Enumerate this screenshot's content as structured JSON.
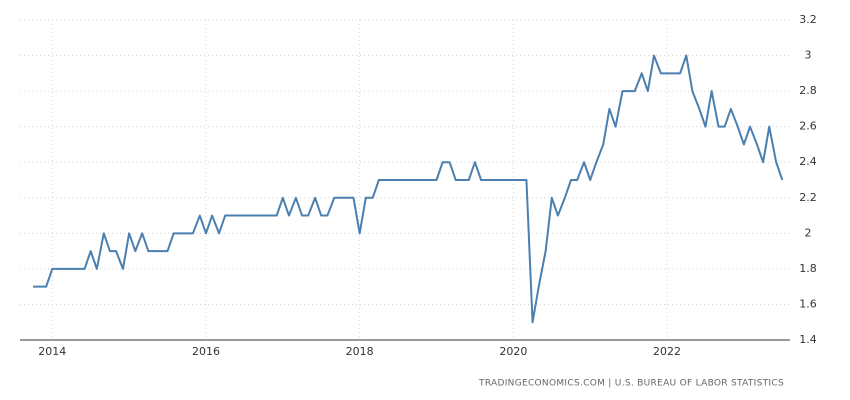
{
  "chart_data": {
    "type": "line",
    "source": "TRADINGECONOMICS.COM | U.S. BUREAU OF LABOR STATISTICS",
    "color": "#4a7fb0",
    "grid": true,
    "xlim": [
      2013.58,
      2023.6
    ],
    "xticks": [
      2014,
      2016,
      2018,
      2020,
      2022
    ],
    "ylim": [
      1.4,
      3.2
    ],
    "yticks": [
      1.4,
      1.6,
      1.8,
      2,
      2.2,
      2.4,
      2.6,
      2.8,
      3,
      3.2
    ],
    "x": [
      2013.75,
      2013.83,
      2013.92,
      2014.0,
      2014.08,
      2014.17,
      2014.25,
      2014.33,
      2014.42,
      2014.5,
      2014.58,
      2014.67,
      2014.75,
      2014.83,
      2014.92,
      2015.0,
      2015.08,
      2015.17,
      2015.25,
      2015.33,
      2015.42,
      2015.5,
      2015.58,
      2015.67,
      2015.75,
      2015.83,
      2015.92,
      2016.0,
      2016.08,
      2016.17,
      2016.25,
      2016.33,
      2016.42,
      2016.5,
      2016.58,
      2016.67,
      2016.75,
      2016.83,
      2016.92,
      2017.0,
      2017.08,
      2017.17,
      2017.25,
      2017.33,
      2017.42,
      2017.5,
      2017.58,
      2017.67,
      2017.75,
      2017.83,
      2017.92,
      2018.0,
      2018.08,
      2018.17,
      2018.25,
      2018.33,
      2018.42,
      2018.5,
      2018.58,
      2018.67,
      2018.75,
      2018.83,
      2018.92,
      2019.0,
      2019.08,
      2019.17,
      2019.25,
      2019.33,
      2019.42,
      2019.5,
      2019.58,
      2019.67,
      2019.75,
      2019.83,
      2019.92,
      2020.0,
      2020.08,
      2020.17,
      2020.25,
      2020.33,
      2020.42,
      2020.5,
      2020.58,
      2020.67,
      2020.75,
      2020.83,
      2020.92,
      2021.0,
      2021.08,
      2021.17,
      2021.25,
      2021.33,
      2021.42,
      2021.5,
      2021.58,
      2021.67,
      2021.75,
      2021.83,
      2021.92,
      2022.0,
      2022.08,
      2022.17,
      2022.25,
      2022.33,
      2022.42,
      2022.5,
      2022.58,
      2022.67,
      2022.75,
      2022.83,
      2022.92,
      2023.0,
      2023.08,
      2023.17,
      2023.25,
      2023.33,
      2023.42,
      2023.5
    ],
    "values": [
      1.7,
      1.7,
      1.7,
      1.8,
      1.8,
      1.8,
      1.8,
      1.8,
      1.8,
      1.9,
      1.8,
      2.0,
      1.9,
      1.9,
      1.8,
      2.0,
      1.9,
      2.0,
      1.9,
      1.9,
      1.9,
      1.9,
      2.0,
      2.0,
      2.0,
      2.0,
      2.1,
      2.0,
      2.1,
      2.0,
      2.1,
      2.1,
      2.1,
      2.1,
      2.1,
      2.1,
      2.1,
      2.1,
      2.1,
      2.2,
      2.1,
      2.2,
      2.1,
      2.1,
      2.2,
      2.1,
      2.1,
      2.2,
      2.2,
      2.2,
      2.2,
      2.0,
      2.2,
      2.2,
      2.3,
      2.3,
      2.3,
      2.3,
      2.3,
      2.3,
      2.3,
      2.3,
      2.3,
      2.3,
      2.4,
      2.4,
      2.3,
      2.3,
      2.3,
      2.4,
      2.3,
      2.3,
      2.3,
      2.3,
      2.3,
      2.3,
      2.3,
      2.3,
      1.5,
      1.7,
      1.9,
      2.2,
      2.1,
      2.2,
      2.3,
      2.3,
      2.4,
      2.3,
      2.4,
      2.5,
      2.7,
      2.6,
      2.8,
      2.8,
      2.8,
      2.9,
      2.8,
      3.0,
      2.9,
      2.9,
      2.9,
      2.9,
      3.0,
      2.8,
      2.7,
      2.6,
      2.8,
      2.6,
      2.6,
      2.7,
      2.6,
      2.5,
      2.6,
      2.5,
      2.4,
      2.6,
      2.4,
      2.3
    ]
  }
}
